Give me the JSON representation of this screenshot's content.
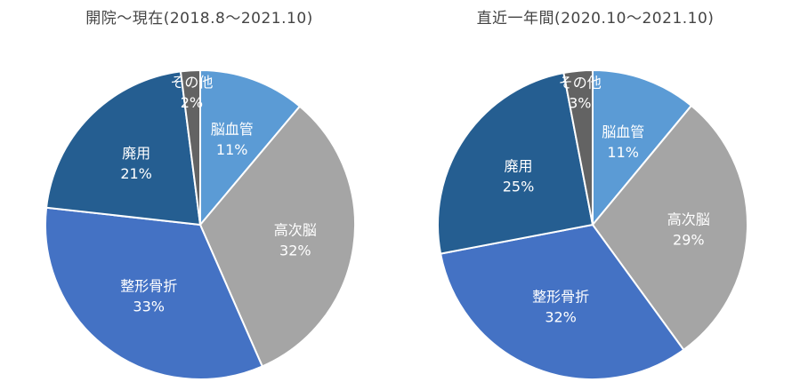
{
  "chart_data": [
    {
      "type": "pie",
      "title": "開院～現在(2018.8～2021.10)",
      "slices": [
        {
          "label": "脳血管",
          "value": 11,
          "pct_text": "11%",
          "color": "#5b9bd5"
        },
        {
          "label": "高次脳",
          "value": 32,
          "pct_text": "32%",
          "color": "#a5a5a5"
        },
        {
          "label": "整形骨折",
          "value": 33,
          "pct_text": "33%",
          "color": "#4472c4"
        },
        {
          "label": "廃用",
          "value": 21,
          "pct_text": "21%",
          "color": "#255e91"
        },
        {
          "label": "その他",
          "value": 2,
          "pct_text": "2%",
          "color": "#636363"
        }
      ]
    },
    {
      "type": "pie",
      "title": "直近一年間(2020.10～2021.10)",
      "slices": [
        {
          "label": "脳血管",
          "value": 11,
          "pct_text": "11%",
          "color": "#5b9bd5"
        },
        {
          "label": "高次脳",
          "value": 29,
          "pct_text": "29%",
          "color": "#a5a5a5"
        },
        {
          "label": "整形骨折",
          "value": 32,
          "pct_text": "32%",
          "color": "#4472c4"
        },
        {
          "label": "廃用",
          "value": 25,
          "pct_text": "25%",
          "color": "#255e91"
        },
        {
          "label": "その他",
          "value": 3,
          "pct_text": "3%",
          "color": "#636363"
        }
      ]
    }
  ]
}
